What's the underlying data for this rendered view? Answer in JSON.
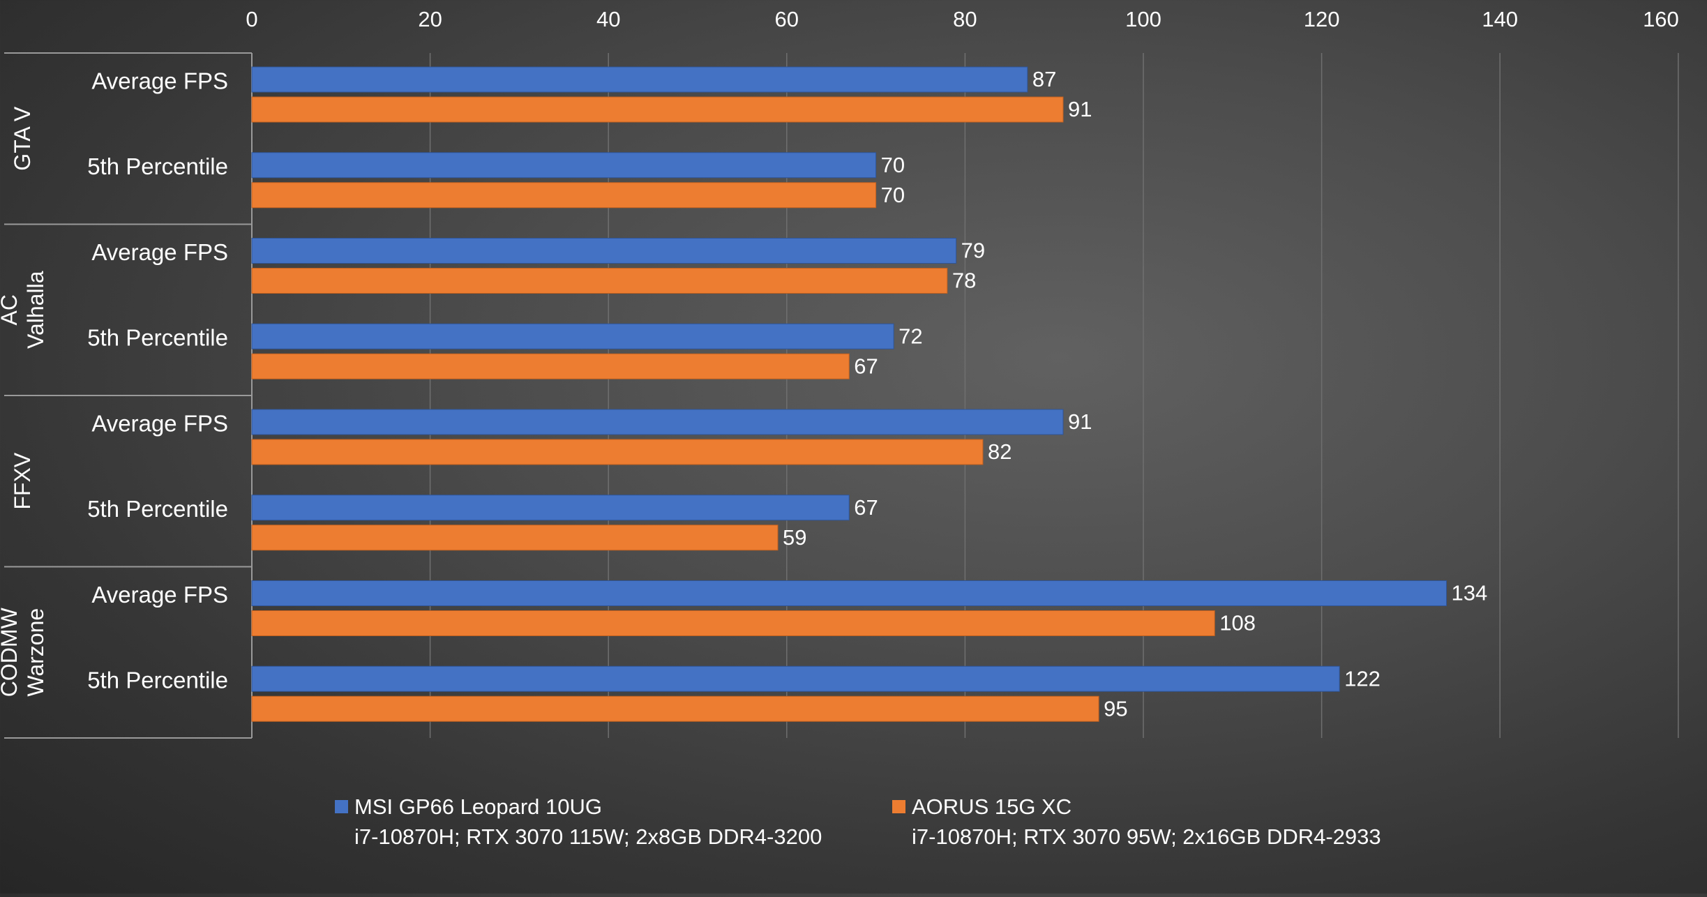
{
  "chart_data": {
    "type": "bar",
    "orientation": "horizontal",
    "title": "",
    "xlabel": "",
    "ylabel": "",
    "xlim": [
      0,
      160
    ],
    "ticks": [
      0,
      20,
      40,
      60,
      80,
      100,
      120,
      140,
      160
    ],
    "grid": true,
    "legend_position": "bottom",
    "groups": [
      {
        "name_lines": [
          "GTA V"
        ],
        "categories": [
          "Average FPS",
          "5th Percentile"
        ]
      },
      {
        "name_lines": [
          "AC",
          "Valhalla"
        ],
        "categories": [
          "Average FPS",
          "5th Percentile"
        ]
      },
      {
        "name_lines": [
          "FFXV"
        ],
        "categories": [
          "Average FPS",
          "5th Percentile"
        ]
      },
      {
        "name_lines": [
          "CODMW",
          "Warzone"
        ],
        "categories": [
          "Average FPS",
          "5th Percentile"
        ]
      }
    ],
    "series": [
      {
        "name": "MSI GP66 Leopard 10UG",
        "detail": "i7-10870H; RTX 3070 115W; 2x8GB DDR4-3200",
        "color": "#4472C4",
        "values": [
          87,
          70,
          79,
          72,
          91,
          67,
          134,
          122
        ]
      },
      {
        "name": "AORUS 15G XC",
        "detail": "i7-10870H; RTX 3070 95W; 2x16GB DDR4-2933",
        "color": "#ED7D31",
        "values": [
          91,
          70,
          78,
          67,
          82,
          59,
          108,
          95
        ]
      }
    ]
  }
}
